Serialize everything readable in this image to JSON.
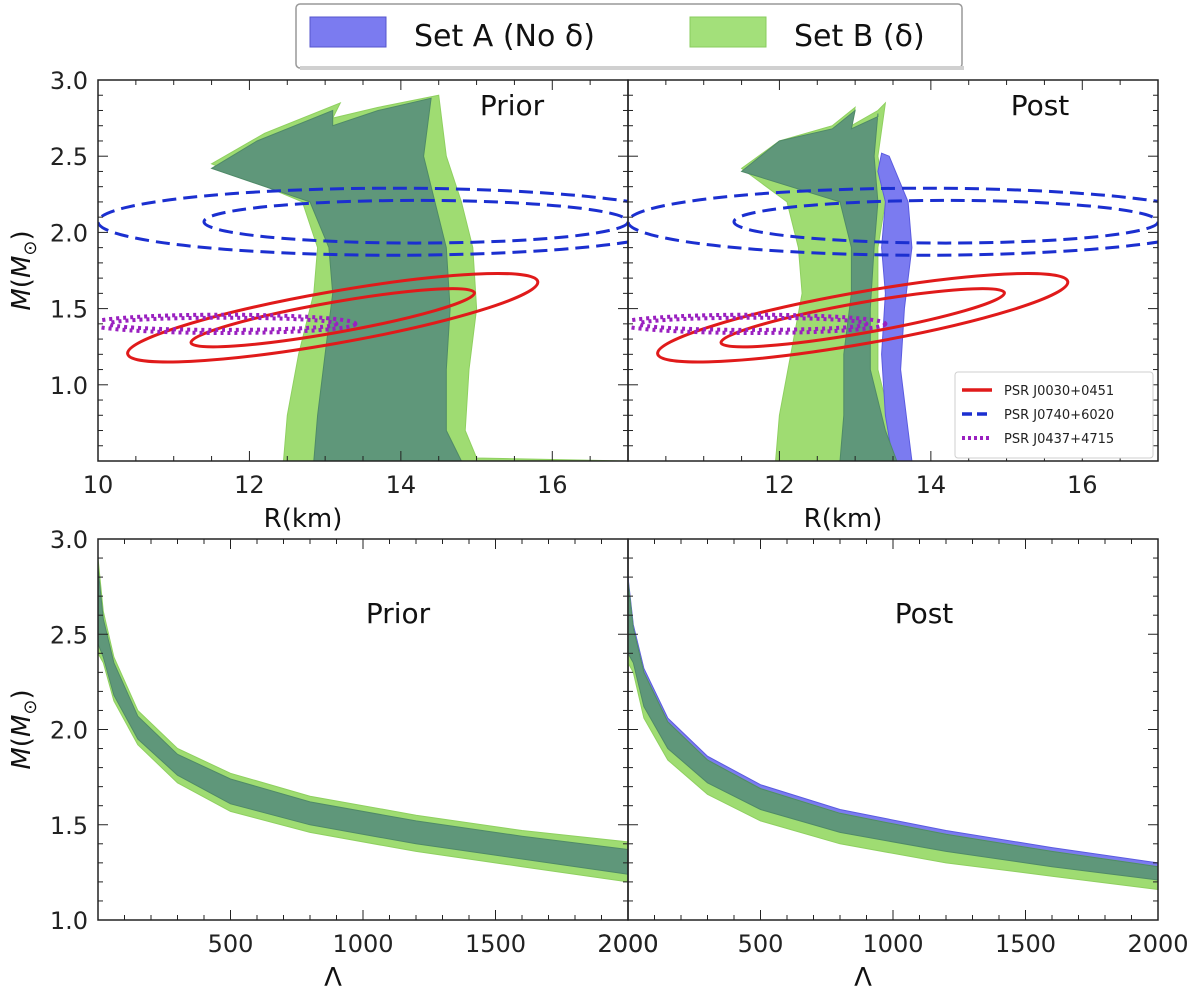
{
  "legend": {
    "entries": [
      {
        "label": "Set A (No δ)",
        "color": "#6b6bf2"
      },
      {
        "label": "Set B (δ)",
        "color": "#a3e07a"
      }
    ]
  },
  "colors": {
    "setA": "#7b7bf0",
    "setB": "#9fdc72",
    "overlap": "#5f977a",
    "psr0030": "#e01a1a",
    "psr0740": "#1b2fd0",
    "psr0437": "#9a20c0"
  },
  "pulsar_legend": [
    {
      "label": "PSR J0030+0451",
      "style": "solid",
      "color": "#e01a1a"
    },
    {
      "label": "PSR J0740+6020",
      "style": "dashed",
      "color": "#1b2fd0"
    },
    {
      "label": "PSR J0437+4715",
      "style": "dotted",
      "color": "#9a20c0"
    }
  ],
  "chart_data": [
    {
      "type": "area",
      "title": "Prior",
      "xlabel": "R(km)",
      "ylabel": "M(M_⊙)",
      "xlim": [
        10,
        17
      ],
      "ylim": [
        0.5,
        3.0
      ],
      "xticks": [
        10,
        12,
        14,
        16
      ],
      "yticks": [
        1.0,
        1.5,
        2.0,
        2.5,
        3.0
      ],
      "show_ytick_labels": true,
      "series": [
        {
          "name": "Set B (δ)",
          "layer": "setB",
          "left": [
            [
              12.45,
              0.5
            ],
            [
              12.5,
              0.8
            ],
            [
              12.65,
              1.2
            ],
            [
              12.85,
              1.6
            ],
            [
              12.9,
              1.9
            ],
            [
              12.7,
              2.2
            ],
            [
              11.5,
              2.45
            ],
            [
              12.2,
              2.65
            ],
            [
              13.2,
              2.85
            ],
            [
              13.1,
              2.75
            ],
            [
              13.7,
              2.82
            ],
            [
              14.5,
              2.9
            ]
          ],
          "right": [
            [
              17.0,
              0.5
            ],
            [
              15.0,
              0.52
            ],
            [
              14.85,
              0.7
            ],
            [
              14.9,
              1.1
            ],
            [
              15.0,
              1.5
            ],
            [
              14.95,
              1.9
            ],
            [
              14.8,
              2.2
            ],
            [
              14.6,
              2.5
            ],
            [
              14.5,
              2.9
            ]
          ]
        },
        {
          "name": "Set A (No δ)",
          "layer": "overlap",
          "left": [
            [
              12.85,
              0.5
            ],
            [
              12.9,
              0.8
            ],
            [
              13.0,
              1.2
            ],
            [
              13.1,
              1.6
            ],
            [
              13.05,
              1.9
            ],
            [
              12.8,
              2.2
            ],
            [
              11.5,
              2.42
            ],
            [
              12.1,
              2.6
            ],
            [
              13.1,
              2.8
            ],
            [
              13.1,
              2.7
            ],
            [
              13.7,
              2.8
            ],
            [
              14.4,
              2.88
            ]
          ],
          "right": [
            [
              17.0,
              0.5
            ],
            [
              14.8,
              0.5
            ],
            [
              14.6,
              0.7
            ],
            [
              14.6,
              1.1
            ],
            [
              14.65,
              1.5
            ],
            [
              14.6,
              1.9
            ],
            [
              14.45,
              2.2
            ],
            [
              14.3,
              2.5
            ],
            [
              14.4,
              2.88
            ]
          ]
        }
      ]
    },
    {
      "type": "area",
      "title": "Post",
      "xlabel": "R(km)",
      "ylabel": "",
      "xlim": [
        10,
        17
      ],
      "ylim": [
        0.5,
        3.0
      ],
      "xticks": [
        12,
        14,
        16
      ],
      "yticks": [
        1.0,
        1.5,
        2.0,
        2.5,
        3.0
      ],
      "show_ytick_labels": false,
      "series": [
        {
          "name": "Set B (δ)",
          "layer": "setB",
          "left": [
            [
              11.95,
              0.5
            ],
            [
              12.0,
              0.8
            ],
            [
              12.15,
              1.2
            ],
            [
              12.3,
              1.6
            ],
            [
              12.25,
              1.9
            ],
            [
              12.1,
              2.2
            ],
            [
              11.5,
              2.42
            ],
            [
              12.0,
              2.6
            ],
            [
              12.7,
              2.7
            ],
            [
              13.0,
              2.82
            ],
            [
              12.95,
              2.7
            ],
            [
              13.3,
              2.8
            ],
            [
              13.4,
              2.85
            ]
          ],
          "right": [
            [
              13.7,
              0.5
            ],
            [
              13.5,
              0.7
            ],
            [
              13.3,
              1.1
            ],
            [
              13.3,
              1.5
            ],
            [
              13.3,
              1.9
            ],
            [
              13.4,
              2.2
            ],
            [
              13.3,
              2.5
            ],
            [
              13.4,
              2.85
            ]
          ]
        },
        {
          "name": "Set A (No δ)",
          "layer": "setA",
          "left": [
            [
              13.5,
              0.5
            ],
            [
              13.4,
              0.8
            ],
            [
              13.35,
              1.2
            ],
            [
              13.4,
              1.6
            ],
            [
              13.35,
              1.9
            ],
            [
              13.4,
              2.2
            ],
            [
              13.3,
              2.4
            ],
            [
              13.35,
              2.52
            ]
          ],
          "right": [
            [
              13.75,
              0.5
            ],
            [
              13.7,
              0.7
            ],
            [
              13.6,
              1.1
            ],
            [
              13.65,
              1.5
            ],
            [
              13.75,
              1.9
            ],
            [
              13.7,
              2.2
            ],
            [
              13.45,
              2.5
            ],
            [
              13.35,
              2.52
            ]
          ]
        },
        {
          "name": "Overlap",
          "layer": "overlap",
          "left": [
            [
              12.8,
              0.5
            ],
            [
              12.85,
              0.8
            ],
            [
              12.85,
              1.2
            ],
            [
              12.95,
              1.6
            ],
            [
              12.95,
              1.9
            ],
            [
              12.8,
              2.2
            ],
            [
              11.5,
              2.4
            ],
            [
              12.0,
              2.6
            ],
            [
              12.7,
              2.68
            ],
            [
              13.0,
              2.8
            ],
            [
              12.95,
              2.68
            ],
            [
              13.3,
              2.76
            ],
            [
              13.3,
              2.78
            ]
          ],
          "right": [
            [
              13.55,
              0.5
            ],
            [
              13.4,
              0.7
            ],
            [
              13.2,
              1.1
            ],
            [
              13.2,
              1.5
            ],
            [
              13.25,
              1.9
            ],
            [
              13.3,
              2.2
            ],
            [
              13.25,
              2.5
            ],
            [
              13.3,
              2.78
            ]
          ]
        }
      ]
    },
    {
      "type": "area",
      "title": "Prior",
      "xlabel": "Λ",
      "ylabel": "M(M_⊙)",
      "xlim": [
        0,
        2000
      ],
      "ylim": [
        1.0,
        3.0
      ],
      "xticks": [
        500,
        1000,
        1500,
        2000
      ],
      "yticks": [
        1.0,
        1.5,
        2.0,
        2.5,
        3.0
      ],
      "show_ytick_labels": true,
      "series": [
        {
          "name": "Set B (δ)",
          "layer": "setB",
          "upper": [
            [
              0,
              2.9
            ],
            [
              20,
              2.62
            ],
            [
              60,
              2.38
            ],
            [
              150,
              2.1
            ],
            [
              300,
              1.9
            ],
            [
              500,
              1.77
            ],
            [
              800,
              1.65
            ],
            [
              1200,
              1.55
            ],
            [
              1600,
              1.47
            ],
            [
              2000,
              1.41
            ]
          ],
          "lower": [
            [
              0,
              2.4
            ],
            [
              20,
              2.35
            ],
            [
              60,
              2.15
            ],
            [
              150,
              1.92
            ],
            [
              300,
              1.72
            ],
            [
              500,
              1.57
            ],
            [
              800,
              1.46
            ],
            [
              1200,
              1.36
            ],
            [
              1600,
              1.28
            ],
            [
              2000,
              1.2
            ]
          ]
        },
        {
          "name": "Set A (No δ)",
          "layer": "overlap",
          "upper": [
            [
              0,
              2.85
            ],
            [
              20,
              2.58
            ],
            [
              60,
              2.35
            ],
            [
              150,
              2.07
            ],
            [
              300,
              1.87
            ],
            [
              500,
              1.74
            ],
            [
              800,
              1.62
            ],
            [
              1200,
              1.52
            ],
            [
              1600,
              1.44
            ],
            [
              2000,
              1.37
            ]
          ],
          "lower": [
            [
              0,
              2.45
            ],
            [
              20,
              2.38
            ],
            [
              60,
              2.18
            ],
            [
              150,
              1.95
            ],
            [
              300,
              1.76
            ],
            [
              500,
              1.61
            ],
            [
              800,
              1.5
            ],
            [
              1200,
              1.4
            ],
            [
              1600,
              1.32
            ],
            [
              2000,
              1.24
            ]
          ]
        }
      ]
    },
    {
      "type": "area",
      "title": "Post",
      "xlabel": "Λ",
      "ylabel": "",
      "xlim": [
        0,
        2000
      ],
      "ylim": [
        1.0,
        3.0
      ],
      "xticks": [
        500,
        1000,
        1500,
        2000
      ],
      "xtick_extra_left": "2000",
      "yticks": [
        1.0,
        1.5,
        2.0,
        2.5,
        3.0
      ],
      "show_ytick_labels": false,
      "series": [
        {
          "name": "Set A (No δ)",
          "layer": "setA",
          "upper": [
            [
              0,
              2.8
            ],
            [
              20,
              2.55
            ],
            [
              60,
              2.32
            ],
            [
              150,
              2.06
            ],
            [
              300,
              1.86
            ],
            [
              500,
              1.71
            ],
            [
              800,
              1.58
            ],
            [
              1200,
              1.47
            ],
            [
              1600,
              1.38
            ],
            [
              2000,
              1.3
            ]
          ],
          "lower": [
            [
              0,
              2.4
            ],
            [
              20,
              2.35
            ],
            [
              60,
              2.12
            ],
            [
              150,
              1.9
            ],
            [
              300,
              1.72
            ],
            [
              500,
              1.58
            ],
            [
              800,
              1.46
            ],
            [
              1200,
              1.36
            ],
            [
              1600,
              1.28
            ],
            [
              2000,
              1.21
            ]
          ]
        },
        {
          "name": "Set B (δ)",
          "layer": "setB",
          "upper": [
            [
              0,
              2.78
            ],
            [
              20,
              2.53
            ],
            [
              60,
              2.3
            ],
            [
              150,
              2.04
            ],
            [
              300,
              1.84
            ],
            [
              500,
              1.69
            ],
            [
              800,
              1.56
            ],
            [
              1200,
              1.45
            ],
            [
              1600,
              1.36
            ],
            [
              2000,
              1.28
            ]
          ],
          "lower": [
            [
              0,
              2.35
            ],
            [
              20,
              2.3
            ],
            [
              60,
              2.06
            ],
            [
              150,
              1.84
            ],
            [
              300,
              1.66
            ],
            [
              500,
              1.52
            ],
            [
              800,
              1.4
            ],
            [
              1200,
              1.3
            ],
            [
              1600,
              1.23
            ],
            [
              2000,
              1.16
            ]
          ]
        },
        {
          "name": "Overlap",
          "layer": "overlap",
          "upper": [
            [
              0,
              2.78
            ],
            [
              20,
              2.53
            ],
            [
              60,
              2.3
            ],
            [
              150,
              2.04
            ],
            [
              300,
              1.84
            ],
            [
              500,
              1.69
            ],
            [
              800,
              1.56
            ],
            [
              1200,
              1.45
            ],
            [
              1600,
              1.36
            ],
            [
              2000,
              1.28
            ]
          ],
          "lower": [
            [
              0,
              2.4
            ],
            [
              20,
              2.35
            ],
            [
              60,
              2.12
            ],
            [
              150,
              1.9
            ],
            [
              300,
              1.72
            ],
            [
              500,
              1.58
            ],
            [
              800,
              1.46
            ],
            [
              1200,
              1.36
            ],
            [
              1600,
              1.28
            ],
            [
              2000,
              1.21
            ]
          ]
        }
      ]
    }
  ],
  "pulsar_contours": [
    {
      "name": "PSR J0740+6020",
      "style": "dashed",
      "center": [
        13.9,
        2.07
      ],
      "rx": [
        2.8,
        3.9
      ],
      "ry": [
        0.14,
        0.22
      ],
      "tilt": 0
    },
    {
      "name": "PSR J0030+0451",
      "style": "solid",
      "center": [
        13.1,
        1.44
      ],
      "rx": [
        1.9,
        2.75
      ],
      "ry": [
        0.1,
        0.17
      ],
      "tilt": 10
    },
    {
      "name": "PSR J0437+4715",
      "style": "dotted",
      "center": [
        11.65,
        1.4
      ],
      "rx": [
        1.5,
        1.75
      ],
      "ry": [
        0.04,
        0.06
      ],
      "tilt": 0
    }
  ]
}
